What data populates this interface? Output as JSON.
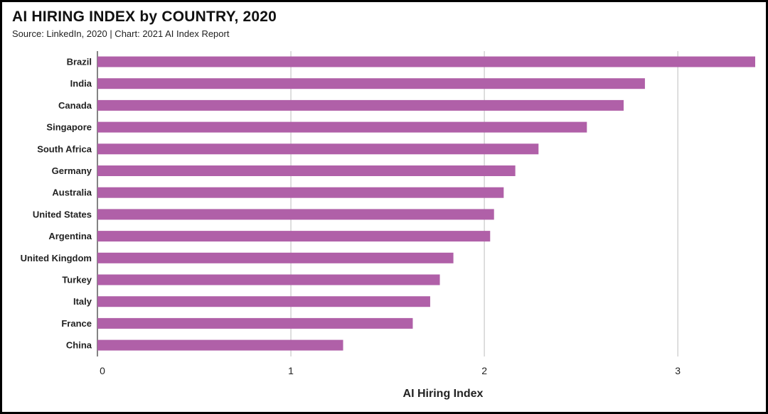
{
  "title": "AI HIRING INDEX by COUNTRY, 2020",
  "subtitle": "Source: LinkedIn, 2020 | Chart: 2021 AI Index Report",
  "chart_data": {
    "type": "bar",
    "orientation": "horizontal",
    "categories": [
      "Brazil",
      "India",
      "Canada",
      "Singapore",
      "South Africa",
      "Germany",
      "Australia",
      "United States",
      "Argentina",
      "United Kingdom",
      "Turkey",
      "Italy",
      "France",
      "China"
    ],
    "values": [
      3.4,
      2.83,
      2.72,
      2.53,
      2.28,
      2.16,
      2.1,
      2.05,
      2.03,
      1.84,
      1.77,
      1.72,
      1.63,
      1.27
    ],
    "xlabel": "AI Hiring Index",
    "ylabel": "",
    "xlim": [
      0,
      3.4
    ],
    "xticks": [
      "0",
      "1",
      "2",
      "3"
    ],
    "grid": "vertical",
    "bar_color": "#b060a8",
    "grid_color": "#c8c8c8"
  }
}
